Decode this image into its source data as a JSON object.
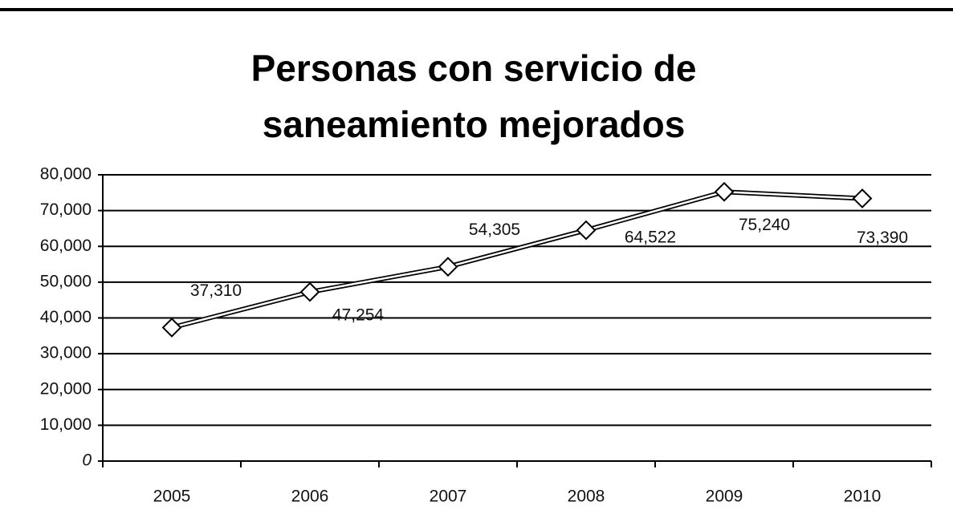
{
  "chart_data": {
    "type": "line",
    "title": "Personas con servicio de saneamiento mejorados",
    "categories": [
      "2005",
      "2006",
      "2007",
      "2008",
      "2009",
      "2010"
    ],
    "series": [
      {
        "name": "Personas",
        "color": "#000000",
        "values": [
          37310,
          47254,
          54305,
          64522,
          75240,
          73390
        ],
        "value_labels": [
          "37,310",
          "47,254",
          "54,305",
          "64,522",
          "75,240",
          "73,390"
        ]
      }
    ],
    "ylim": [
      0,
      80000
    ],
    "yticks": [
      0,
      {
        "value": 10000,
        "label": "10,000"
      },
      {
        "value": 20000,
        "label": "20,000"
      },
      {
        "value": 30000,
        "label": "30,000"
      },
      {
        "value": 40000,
        "label": "40,000"
      },
      {
        "value": 50000,
        "label": "50,000"
      },
      {
        "value": 60000,
        "label": "60,000"
      },
      {
        "value": 70000,
        "label": "70,000"
      },
      {
        "value": 80000,
        "label": "80,000"
      }
    ],
    "grid": true
  }
}
